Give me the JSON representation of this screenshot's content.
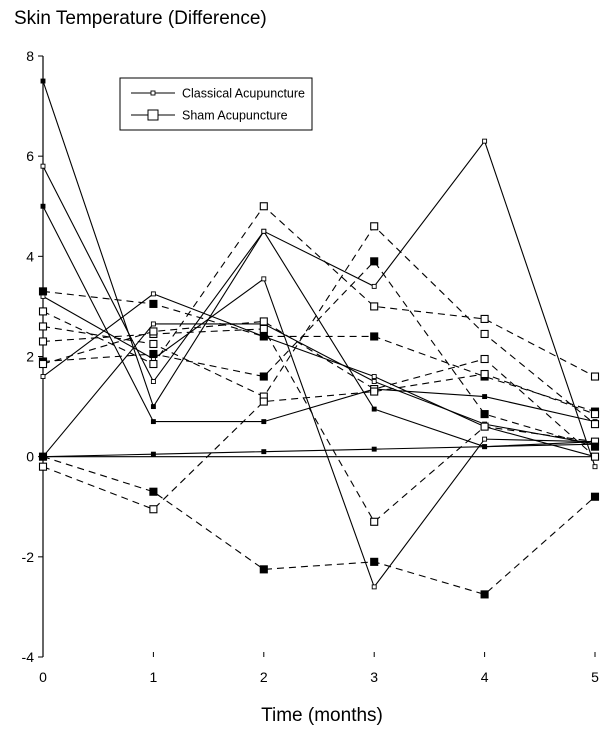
{
  "chart_data": {
    "type": "line",
    "title": "Skin Temperature (Difference)",
    "xlabel": "Time (months)",
    "ylabel": "",
    "x": [
      0,
      1,
      2,
      3,
      4,
      5
    ],
    "xlim": [
      0,
      5
    ],
    "ylim": [
      -4,
      8
    ],
    "xticks": [
      "0",
      "1",
      "2",
      "3",
      "4",
      "5"
    ],
    "yticks": [
      "-4",
      "-2",
      "0",
      "2",
      "4",
      "6",
      "8"
    ],
    "grid": false,
    "legend": {
      "position": "top-left",
      "entries": [
        {
          "label": "Classical Acupuncture",
          "line": "solid",
          "marker": "small-square"
        },
        {
          "label": "Sham Acupuncture",
          "line": "solid",
          "marker": "large-square"
        }
      ]
    },
    "series": [
      {
        "group": "classical",
        "values": [
          7.5,
          1.0,
          4.5,
          0.95,
          0.2,
          0.3
        ],
        "line": "solid",
        "marker": "small-filled"
      },
      {
        "group": "classical",
        "values": [
          5.8,
          1.5,
          4.5,
          3.4,
          6.3,
          -0.2
        ],
        "line": "solid",
        "marker": "small-open"
      },
      {
        "group": "classical",
        "values": [
          5.0,
          0.7,
          0.7,
          1.35,
          1.2,
          0.7
        ],
        "line": "solid",
        "marker": "small-filled"
      },
      {
        "group": "classical",
        "values": [
          3.2,
          1.95,
          3.55,
          -2.6,
          0.35,
          0.3
        ],
        "line": "solid",
        "marker": "small-open"
      },
      {
        "group": "classical",
        "values": [
          1.6,
          3.25,
          2.4,
          1.6,
          0.6,
          0.0
        ],
        "line": "solid",
        "marker": "small-open"
      },
      {
        "group": "classical",
        "values": [
          0.0,
          2.65,
          2.65,
          1.5,
          0.65,
          0.25
        ],
        "line": "solid",
        "marker": "small-open"
      },
      {
        "group": "classical",
        "values": [
          0.0,
          0.05,
          0.1,
          0.15,
          0.2,
          0.25
        ],
        "line": "solid",
        "marker": "small-filled"
      },
      {
        "group": "sham",
        "values": [
          3.3,
          3.05,
          2.4,
          2.4,
          1.6,
          0.9
        ],
        "line": "dashed",
        "marker": "large-filled"
      },
      {
        "group": "sham",
        "values": [
          2.9,
          1.85,
          5.0,
          3.0,
          2.75,
          1.6
        ],
        "line": "dashed",
        "marker": "large-open"
      },
      {
        "group": "sham",
        "values": [
          2.6,
          2.25,
          1.2,
          4.6,
          2.45,
          0.65
        ],
        "line": "dashed",
        "marker": "large-open"
      },
      {
        "group": "sham",
        "values": [
          2.3,
          2.45,
          2.55,
          -1.3,
          0.6,
          0.3
        ],
        "line": "dashed",
        "marker": "large-open"
      },
      {
        "group": "sham",
        "values": [
          1.9,
          2.05,
          1.6,
          3.9,
          0.85,
          0.2
        ],
        "line": "dashed",
        "marker": "large-filled"
      },
      {
        "group": "sham",
        "values": [
          1.85,
          2.5,
          2.7,
          1.35,
          1.95,
          0.0
        ],
        "line": "dashed",
        "marker": "large-open"
      },
      {
        "group": "sham",
        "values": [
          0.0,
          -0.7,
          -2.25,
          -2.1,
          -2.75,
          -0.8
        ],
        "line": "dashed",
        "marker": "large-filled"
      },
      {
        "group": "sham",
        "values": [
          -0.2,
          -1.05,
          1.1,
          1.3,
          1.65,
          0.85
        ],
        "line": "dashed",
        "marker": "large-open"
      }
    ]
  }
}
